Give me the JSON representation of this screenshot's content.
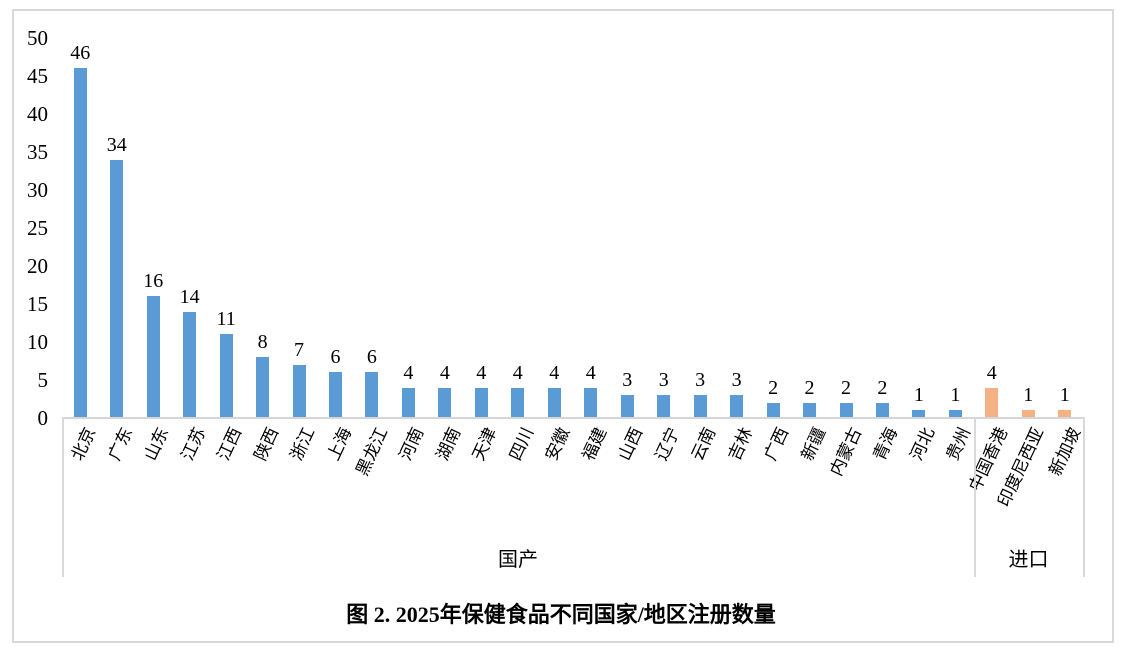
{
  "chart_data": {
    "type": "bar",
    "title": "图 2. 2025年保健食品不同国家/地区注册数量",
    "xlabel": "",
    "ylabel": "",
    "ylim": [
      0,
      50
    ],
    "yticks": [
      0,
      5,
      10,
      15,
      20,
      25,
      30,
      35,
      40,
      45,
      50
    ],
    "grid": false,
    "legend_position": "none",
    "value_labels_shown": true,
    "axis_color": "#D9D9D9",
    "groups": [
      {
        "label": "国产",
        "color": "#5B9BD5",
        "categories": [
          "北京",
          "广东",
          "山东",
          "江苏",
          "江西",
          "陕西",
          "浙江",
          "上海",
          "黑龙江",
          "河南",
          "湖南",
          "天津",
          "四川",
          "安徽",
          "福建",
          "山西",
          "辽宁",
          "云南",
          "吉林",
          "广西",
          "新疆",
          "内蒙古",
          "青海",
          "河北",
          "贵州"
        ],
        "values": [
          46,
          34,
          16,
          14,
          11,
          8,
          7,
          6,
          6,
          4,
          4,
          4,
          4,
          4,
          4,
          3,
          3,
          3,
          3,
          2,
          2,
          2,
          2,
          1,
          1
        ]
      },
      {
        "label": "进口",
        "color": "#F4B183",
        "categories": [
          "中国香港",
          "印度尼西亚",
          "新加坡"
        ],
        "values": [
          4,
          1,
          1
        ]
      }
    ]
  }
}
